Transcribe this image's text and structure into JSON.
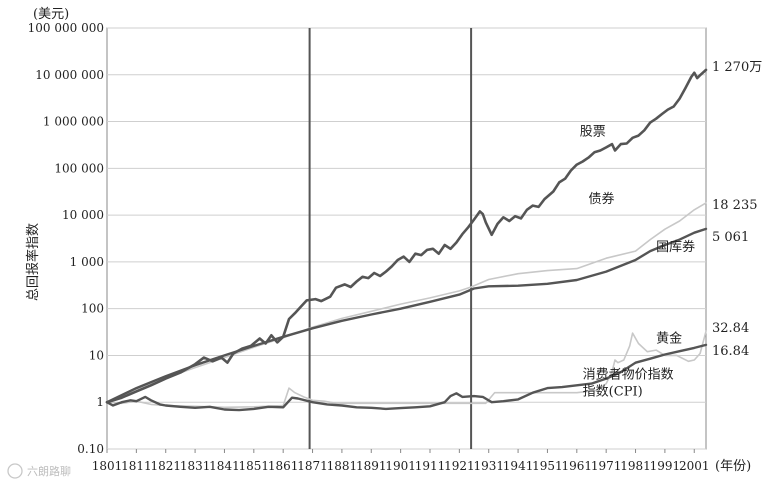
{
  "chart_data": {
    "type": "line",
    "title": "",
    "ylabel": "总回报率指数",
    "y_unit": "(美元)",
    "x_unit": "(年份)",
    "yscale": "log",
    "ylim": [
      0.1,
      100000000
    ],
    "xlim": [
      1801,
      2005
    ],
    "grid": true,
    "y_ticks": [
      {
        "value": 0.1,
        "label": "0.10"
      },
      {
        "value": 1,
        "label": "1"
      },
      {
        "value": 10,
        "label": "10"
      },
      {
        "value": 100,
        "label": "100"
      },
      {
        "value": 1000,
        "label": "1 000"
      },
      {
        "value": 10000,
        "label": "10 000"
      },
      {
        "value": 100000,
        "label": "100 000"
      },
      {
        "value": 1000000,
        "label": "1 000 000"
      },
      {
        "value": 10000000,
        "label": "10 000 000"
      },
      {
        "value": 100000000,
        "label": "100 000 000"
      }
    ],
    "x_ticks": [
      {
        "value": 1801,
        "label": "1801"
      },
      {
        "value": 1811,
        "label": "1811"
      },
      {
        "value": 1821,
        "label": "1821"
      },
      {
        "value": 1831,
        "label": "1831"
      },
      {
        "value": 1841,
        "label": "1841"
      },
      {
        "value": 1851,
        "label": "1851"
      },
      {
        "value": 1861,
        "label": "1861"
      },
      {
        "value": 1871,
        "label": "1871"
      },
      {
        "value": 1881,
        "label": "1881"
      },
      {
        "value": 1891,
        "label": "1891"
      },
      {
        "value": 1901,
        "label": "1901"
      },
      {
        "value": 1911,
        "label": "1911"
      },
      {
        "value": 1921,
        "label": "1921"
      },
      {
        "value": 1931,
        "label": "1931"
      },
      {
        "value": 1941,
        "label": "1941"
      },
      {
        "value": 1951,
        "label": "1951"
      },
      {
        "value": 1961,
        "label": "1961"
      },
      {
        "value": 1971,
        "label": "1971"
      },
      {
        "value": 1981,
        "label": "1981"
      },
      {
        "value": 1991,
        "label": "1991"
      },
      {
        "value": 2001,
        "label": "2001"
      }
    ],
    "vertical_markers": [
      1870,
      1925
    ],
    "series": [
      {
        "name": "股票",
        "end_label": "1 270万",
        "color": "#555555",
        "width": 2.6,
        "points": [
          [
            1801,
            1
          ],
          [
            1806,
            1.25
          ],
          [
            1811,
            1.7
          ],
          [
            1816,
            2.3
          ],
          [
            1821,
            3.2
          ],
          [
            1826,
            4.3
          ],
          [
            1831,
            6.5
          ],
          [
            1834,
            9.0
          ],
          [
            1837,
            7.5
          ],
          [
            1840,
            9.0
          ],
          [
            1842,
            7.0
          ],
          [
            1844,
            11
          ],
          [
            1847,
            14
          ],
          [
            1850,
            16
          ],
          [
            1853,
            23
          ],
          [
            1855,
            18
          ],
          [
            1857,
            27
          ],
          [
            1859,
            19
          ],
          [
            1861,
            25
          ],
          [
            1863,
            60
          ],
          [
            1865,
            80
          ],
          [
            1867,
            110
          ],
          [
            1869,
            150
          ],
          [
            1872,
            160
          ],
          [
            1874,
            145
          ],
          [
            1877,
            180
          ],
          [
            1879,
            280
          ],
          [
            1882,
            330
          ],
          [
            1884,
            290
          ],
          [
            1886,
            380
          ],
          [
            1888,
            480
          ],
          [
            1890,
            450
          ],
          [
            1892,
            580
          ],
          [
            1894,
            500
          ],
          [
            1896,
            620
          ],
          [
            1898,
            800
          ],
          [
            1900,
            1100
          ],
          [
            1902,
            1300
          ],
          [
            1904,
            1000
          ],
          [
            1906,
            1500
          ],
          [
            1908,
            1400
          ],
          [
            1910,
            1800
          ],
          [
            1912,
            1900
          ],
          [
            1914,
            1500
          ],
          [
            1916,
            2300
          ],
          [
            1918,
            1900
          ],
          [
            1920,
            2600
          ],
          [
            1922,
            3900
          ],
          [
            1924,
            5500
          ],
          [
            1926,
            8000
          ],
          [
            1928,
            12000
          ],
          [
            1929,
            10500
          ],
          [
            1930,
            7000
          ],
          [
            1932,
            3800
          ],
          [
            1934,
            6500
          ],
          [
            1936,
            9000
          ],
          [
            1938,
            7500
          ],
          [
            1940,
            9500
          ],
          [
            1942,
            8500
          ],
          [
            1944,
            13000
          ],
          [
            1946,
            16000
          ],
          [
            1948,
            15000
          ],
          [
            1950,
            22000
          ],
          [
            1953,
            32000
          ],
          [
            1955,
            50000
          ],
          [
            1957,
            60000
          ],
          [
            1959,
            90000
          ],
          [
            1961,
            120000
          ],
          [
            1963,
            140000
          ],
          [
            1965,
            170000
          ],
          [
            1967,
            220000
          ],
          [
            1969,
            240000
          ],
          [
            1971,
            280000
          ],
          [
            1973,
            330000
          ],
          [
            1974,
            240000
          ],
          [
            1976,
            330000
          ],
          [
            1978,
            340000
          ],
          [
            1980,
            450000
          ],
          [
            1982,
            500000
          ],
          [
            1984,
            650000
          ],
          [
            1986,
            950000
          ],
          [
            1988,
            1150000
          ],
          [
            1990,
            1450000
          ],
          [
            1992,
            1800000
          ],
          [
            1994,
            2100000
          ],
          [
            1996,
            3100000
          ],
          [
            1998,
            5200000
          ],
          [
            2000,
            9000000
          ],
          [
            2001,
            11000000
          ],
          [
            2002,
            8500000
          ],
          [
            2003,
            9800000
          ],
          [
            2005,
            12700000
          ]
        ]
      },
      {
        "name": "债券",
        "end_label": "18 235",
        "color": "#c8c8c8",
        "width": 1.6,
        "points": [
          [
            1801,
            1
          ],
          [
            1811,
            1.9
          ],
          [
            1821,
            3.3
          ],
          [
            1831,
            5.5
          ],
          [
            1841,
            9
          ],
          [
            1851,
            15
          ],
          [
            1861,
            24
          ],
          [
            1871,
            40
          ],
          [
            1881,
            62
          ],
          [
            1891,
            88
          ],
          [
            1901,
            125
          ],
          [
            1911,
            170
          ],
          [
            1921,
            240
          ],
          [
            1925,
            290
          ],
          [
            1931,
            420
          ],
          [
            1941,
            560
          ],
          [
            1951,
            650
          ],
          [
            1961,
            720
          ],
          [
            1971,
            1200
          ],
          [
            1981,
            1700
          ],
          [
            1986,
            3000
          ],
          [
            1991,
            5000
          ],
          [
            1996,
            7500
          ],
          [
            2001,
            13000
          ],
          [
            2005,
            18235
          ]
        ]
      },
      {
        "name": "国库券",
        "end_label": "5 061",
        "color": "#555555",
        "width": 2.4,
        "points": [
          [
            1801,
            1
          ],
          [
            1811,
            2
          ],
          [
            1821,
            3.6
          ],
          [
            1831,
            6.2
          ],
          [
            1841,
            10
          ],
          [
            1851,
            16
          ],
          [
            1861,
            25
          ],
          [
            1871,
            38
          ],
          [
            1881,
            55
          ],
          [
            1891,
            75
          ],
          [
            1901,
            100
          ],
          [
            1911,
            140
          ],
          [
            1921,
            200
          ],
          [
            1926,
            270
          ],
          [
            1931,
            300
          ],
          [
            1941,
            310
          ],
          [
            1951,
            340
          ],
          [
            1961,
            410
          ],
          [
            1971,
            620
          ],
          [
            1981,
            1100
          ],
          [
            1986,
            1700
          ],
          [
            1991,
            2300
          ],
          [
            1996,
            3000
          ],
          [
            2001,
            4200
          ],
          [
            2005,
            5061
          ]
        ]
      },
      {
        "name": "黄金",
        "end_label": "32.84",
        "color": "#c8c8c8",
        "width": 1.6,
        "points": [
          [
            1801,
            1
          ],
          [
            1806,
            0.95
          ],
          [
            1811,
            1.05
          ],
          [
            1816,
            0.9
          ],
          [
            1821,
            0.85
          ],
          [
            1831,
            0.82
          ],
          [
            1841,
            0.78
          ],
          [
            1851,
            0.8
          ],
          [
            1861,
            0.85
          ],
          [
            1862,
            1.3
          ],
          [
            1863,
            2.0
          ],
          [
            1865,
            1.6
          ],
          [
            1868,
            1.3
          ],
          [
            1871,
            1.1
          ],
          [
            1875,
            1.05
          ],
          [
            1879,
            0.95
          ],
          [
            1891,
            0.95
          ],
          [
            1901,
            0.95
          ],
          [
            1911,
            0.95
          ],
          [
            1921,
            0.95
          ],
          [
            1930,
            0.95
          ],
          [
            1933,
            1.6
          ],
          [
            1941,
            1.6
          ],
          [
            1951,
            1.6
          ],
          [
            1961,
            1.6
          ],
          [
            1968,
            1.8
          ],
          [
            1971,
            2.5
          ],
          [
            1973,
            4.5
          ],
          [
            1974,
            8
          ],
          [
            1975,
            7
          ],
          [
            1977,
            8
          ],
          [
            1979,
            16
          ],
          [
            1980,
            30
          ],
          [
            1982,
            18
          ],
          [
            1985,
            12
          ],
          [
            1988,
            13
          ],
          [
            1991,
            10
          ],
          [
            1995,
            10
          ],
          [
            1999,
            7.5
          ],
          [
            2001,
            8
          ],
          [
            2003,
            11
          ],
          [
            2005,
            32.84
          ]
        ]
      },
      {
        "name": "消费者物价指数(CPI)",
        "end_label": "16.84",
        "color": "#555555",
        "width": 2.4,
        "points": [
          [
            1801,
            1
          ],
          [
            1803,
            0.85
          ],
          [
            1806,
            1.0
          ],
          [
            1809,
            1.1
          ],
          [
            1811,
            1.05
          ],
          [
            1814,
            1.3
          ],
          [
            1816,
            1.1
          ],
          [
            1819,
            0.9
          ],
          [
            1821,
            0.85
          ],
          [
            1826,
            0.8
          ],
          [
            1831,
            0.76
          ],
          [
            1836,
            0.8
          ],
          [
            1841,
            0.7
          ],
          [
            1846,
            0.68
          ],
          [
            1851,
            0.72
          ],
          [
            1856,
            0.8
          ],
          [
            1861,
            0.78
          ],
          [
            1864,
            1.25
          ],
          [
            1866,
            1.2
          ],
          [
            1871,
            1.0
          ],
          [
            1876,
            0.9
          ],
          [
            1881,
            0.85
          ],
          [
            1886,
            0.78
          ],
          [
            1891,
            0.76
          ],
          [
            1896,
            0.72
          ],
          [
            1901,
            0.75
          ],
          [
            1906,
            0.78
          ],
          [
            1911,
            0.82
          ],
          [
            1916,
            1.0
          ],
          [
            1918,
            1.35
          ],
          [
            1920,
            1.55
          ],
          [
            1922,
            1.3
          ],
          [
            1926,
            1.35
          ],
          [
            1929,
            1.3
          ],
          [
            1932,
            1.0
          ],
          [
            1936,
            1.05
          ],
          [
            1941,
            1.15
          ],
          [
            1946,
            1.6
          ],
          [
            1951,
            2.0
          ],
          [
            1956,
            2.1
          ],
          [
            1961,
            2.3
          ],
          [
            1966,
            2.5
          ],
          [
            1971,
            3.2
          ],
          [
            1976,
            4.4
          ],
          [
            1981,
            7.0
          ],
          [
            1986,
            8.5
          ],
          [
            1991,
            10.5
          ],
          [
            1996,
            12.3
          ],
          [
            2001,
            14.5
          ],
          [
            2005,
            16.84
          ]
        ]
      }
    ],
    "annotations": [
      {
        "text": "股票",
        "x": 1962,
        "y": 500000
      },
      {
        "text": "债券",
        "x": 1965,
        "y": 18000
      },
      {
        "text": "国库券",
        "x": 1988,
        "y": 1700
      },
      {
        "text": "黄金",
        "x": 1988,
        "y": 19
      },
      {
        "text": "消费者物价指数",
        "x": 1963,
        "y": 3.2
      },
      {
        "text": "指数(CPI)",
        "x": 1963,
        "y": 1.4
      }
    ]
  },
  "watermark": "六朗路聊"
}
